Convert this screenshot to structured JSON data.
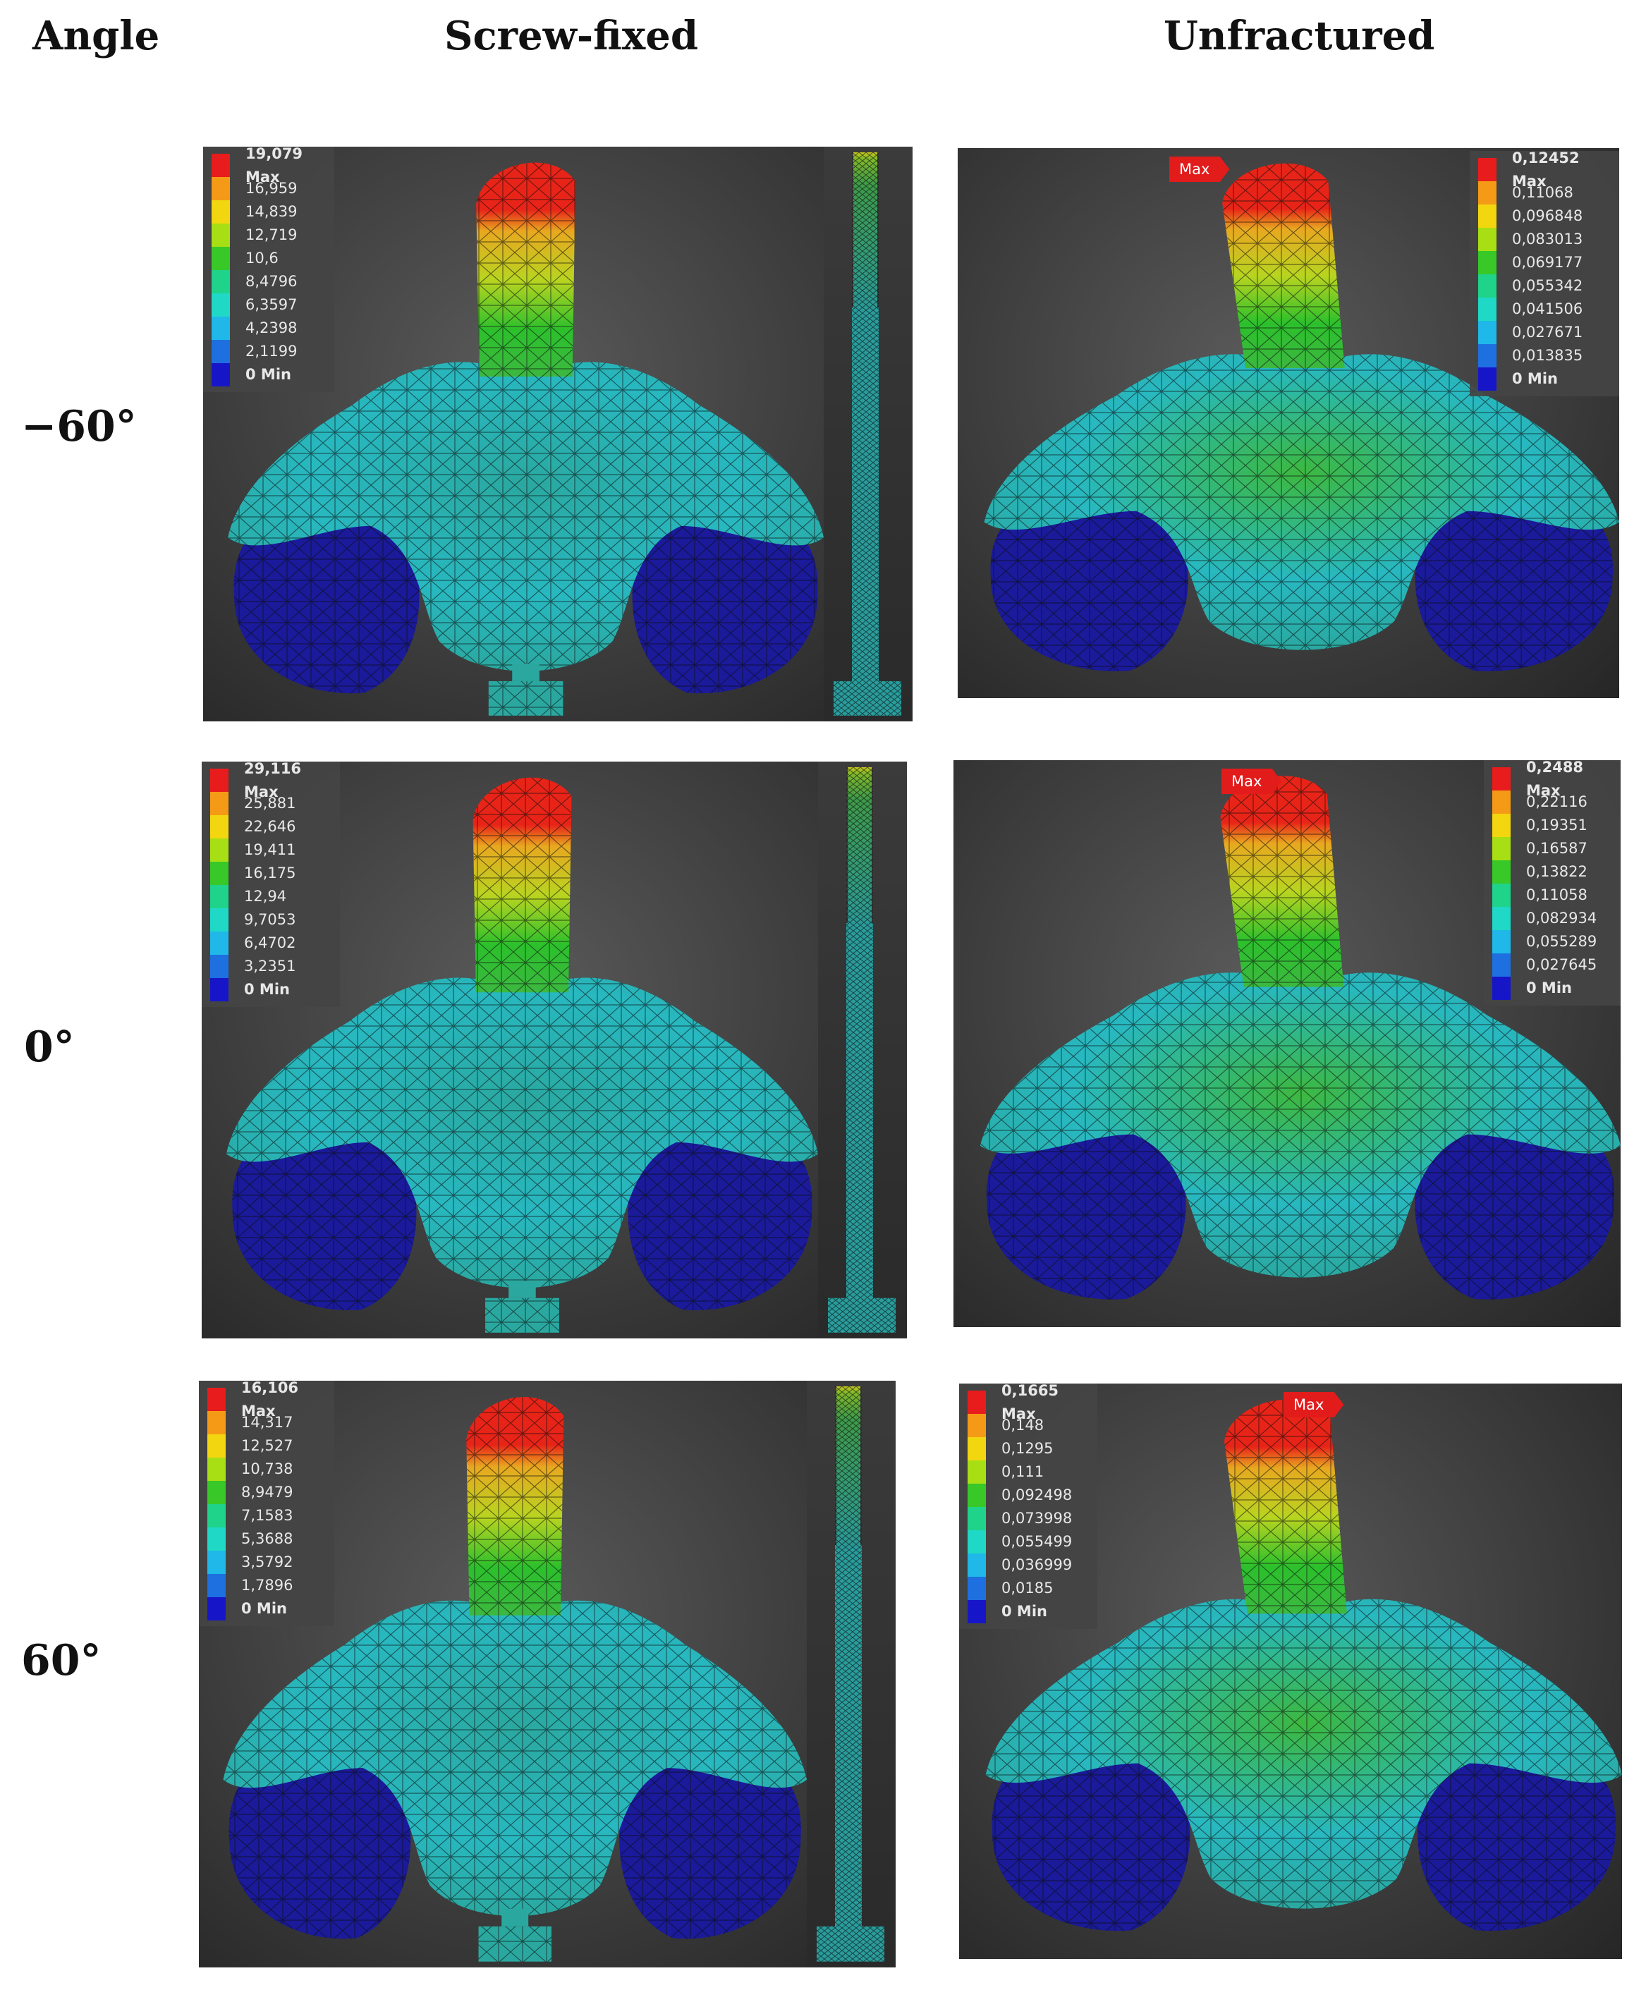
{
  "headers": {
    "angle": "Angle",
    "screw_fixed": "Screw-fixed",
    "unfractured": "Unfractured"
  },
  "rows": [
    {
      "angle": "−60°",
      "screw_fixed": {
        "legend": [
          "19,079 Max",
          "16,959",
          "14,839",
          "12,719",
          "10,6",
          "8,4796",
          "6,3597",
          "4,2398",
          "2,1199",
          "0 Min"
        ]
      },
      "unfractured": {
        "max_tag": "Max",
        "legend": [
          "0,12452 Max",
          "0,11068",
          "0,096848",
          "0,083013",
          "0,069177",
          "0,055342",
          "0,041506",
          "0,027671",
          "0,013835",
          "0 Min"
        ]
      }
    },
    {
      "angle": "0°",
      "screw_fixed": {
        "legend": [
          "29,116 Max",
          "25,881",
          "22,646",
          "19,411",
          "16,175",
          "12,94",
          "9,7053",
          "6,4702",
          "3,2351",
          "0 Min"
        ]
      },
      "unfractured": {
        "max_tag": "Max",
        "legend": [
          "0,2488 Max",
          "0,22116",
          "0,19351",
          "0,16587",
          "0,13822",
          "0,11058",
          "0,082934",
          "0,055289",
          "0,027645",
          "0 Min"
        ]
      }
    },
    {
      "angle": "60°",
      "screw_fixed": {
        "legend": [
          "16,106 Max",
          "14,317",
          "12,527",
          "10,738",
          "8,9479",
          "7,1583",
          "5,3688",
          "3,5792",
          "1,7896",
          "0 Min"
        ]
      },
      "unfractured": {
        "max_tag": "Max",
        "legend": [
          "0,1665 Max",
          "0,148",
          "0,1295",
          "0,111",
          "0,092498",
          "0,073998",
          "0,055499",
          "0,036999",
          "0,0185",
          "0 Min"
        ]
      }
    }
  ],
  "legend_colors": [
    "#e81c1c",
    "#f59a16",
    "#f2d60f",
    "#a8df14",
    "#38c828",
    "#1fd38a",
    "#20d8c6",
    "#1fb8e8",
    "#1e6fe0",
    "#1616c8"
  ],
  "model_colors": {
    "tip": "#e82418",
    "upper": "#e8a820",
    "mid": "#b8d420",
    "lower": "#2cc02c",
    "body_green": "#3cb840",
    "body_teal": "#2aa8a0",
    "body_cyan": "#28b8c0",
    "base": "#1a1a9a",
    "mesh_line": "#0b0b0b"
  }
}
